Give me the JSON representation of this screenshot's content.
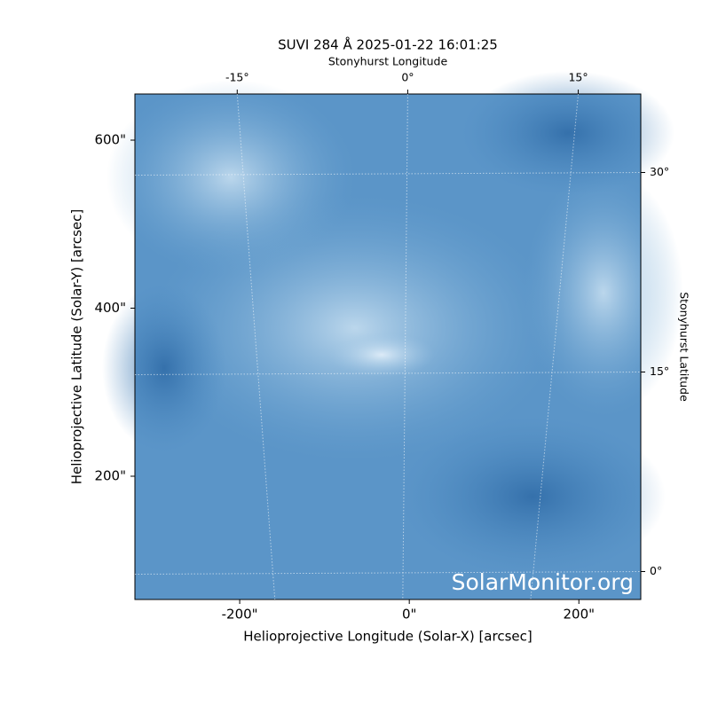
{
  "chart_data": {
    "type": "image",
    "title": "SUVI 284 Å 2025-01-22 16:01:25",
    "xlabel": "Helioprojective Longitude (Solar-X) [arcsec]",
    "ylabel": "Helioprojective Latitude (Solar-Y) [arcsec]",
    "x2label": "Stonyhurst Longitude",
    "y2label": "Stonyhurst Latitude",
    "watermark": "SolarMonitor.org",
    "xlim": [
      -323.6,
      273.0
    ],
    "ylim": [
      53.3,
      654.9
    ],
    "xticks": [
      {
        "value": -200,
        "label": "-200\""
      },
      {
        "value": 0,
        "label": "0\""
      },
      {
        "value": 200,
        "label": "200\""
      }
    ],
    "yticks": [
      {
        "value": 200,
        "label": "200\""
      },
      {
        "value": 400,
        "label": "400\""
      },
      {
        "value": 600,
        "label": "600\""
      }
    ],
    "x2lim": [
      -24.0,
      20.5
    ],
    "x2ticks": [
      {
        "value": -15,
        "label": "-15°"
      },
      {
        "value": 0,
        "label": "0°"
      },
      {
        "value": 15,
        "label": "15°"
      }
    ],
    "y2lim": [
      -2.1,
      35.9
    ],
    "y2ticks": [
      {
        "value": 0,
        "label": "0°"
      },
      {
        "value": 15,
        "label": "15°"
      },
      {
        "value": 30,
        "label": "30°"
      }
    ],
    "grid": true
  }
}
